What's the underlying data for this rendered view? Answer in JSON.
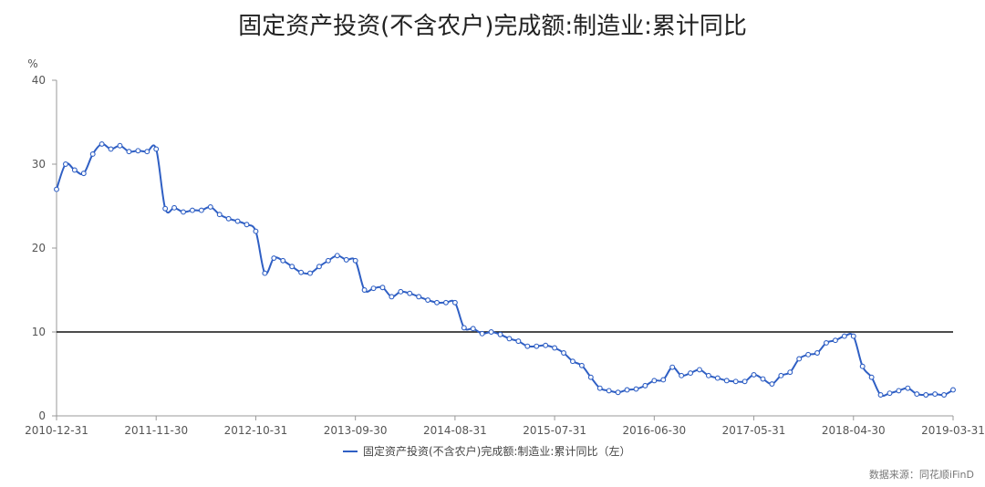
{
  "title": "固定资产投资(不含农户)完成额:制造业:累计同比",
  "source": "数据来源：同花顺iFinD",
  "chart_data": {
    "type": "line",
    "title": "固定资产投资(不含农户)完成额:制造业:累计同比",
    "xlabel": "",
    "ylabel": "%",
    "ylim": [
      0,
      40
    ],
    "yticks": [
      0,
      10,
      20,
      30,
      40
    ],
    "xtick_labels": [
      "2010-12-31",
      "2011-11-30",
      "2012-10-31",
      "2013-09-30",
      "2014-08-31",
      "2015-07-31",
      "2016-06-30",
      "2017-05-31",
      "2018-04-30",
      "2019-03-31"
    ],
    "reference_line": 10,
    "grid": false,
    "legend_position": "bottom",
    "line_color": "#2f5fc4",
    "series": [
      {
        "name": "固定资产投资(不含农户)完成额:制造业:累计同比（左）",
        "values": [
          27.0,
          30.0,
          29.3,
          28.9,
          31.2,
          32.4,
          31.8,
          32.2,
          31.5,
          31.6,
          31.5,
          31.8,
          24.7,
          24.8,
          24.3,
          24.5,
          24.5,
          24.9,
          24.0,
          23.5,
          23.2,
          22.8,
          22.0,
          17.0,
          18.8,
          18.5,
          17.8,
          17.1,
          17.0,
          17.8,
          18.5,
          19.1,
          18.6,
          18.5,
          15.0,
          15.2,
          15.3,
          14.2,
          14.8,
          14.6,
          14.2,
          13.8,
          13.5,
          13.5,
          13.5,
          10.5,
          10.4,
          9.8,
          10.0,
          9.7,
          9.2,
          8.9,
          8.3,
          8.3,
          8.4,
          8.1,
          7.5,
          6.5,
          6.0,
          4.6,
          3.3,
          3.0,
          2.8,
          3.1,
          3.2,
          3.6,
          4.2,
          4.3,
          5.8,
          4.8,
          5.1,
          5.5,
          4.8,
          4.5,
          4.2,
          4.1,
          4.1,
          4.9,
          4.4,
          3.8,
          4.8,
          5.2,
          6.8,
          7.3,
          7.5,
          8.7,
          9.0,
          9.5,
          9.5,
          5.9,
          4.6,
          2.5,
          2.7,
          3.0,
          3.3,
          2.6,
          2.5,
          2.6,
          2.5,
          3.1
        ]
      }
    ]
  }
}
